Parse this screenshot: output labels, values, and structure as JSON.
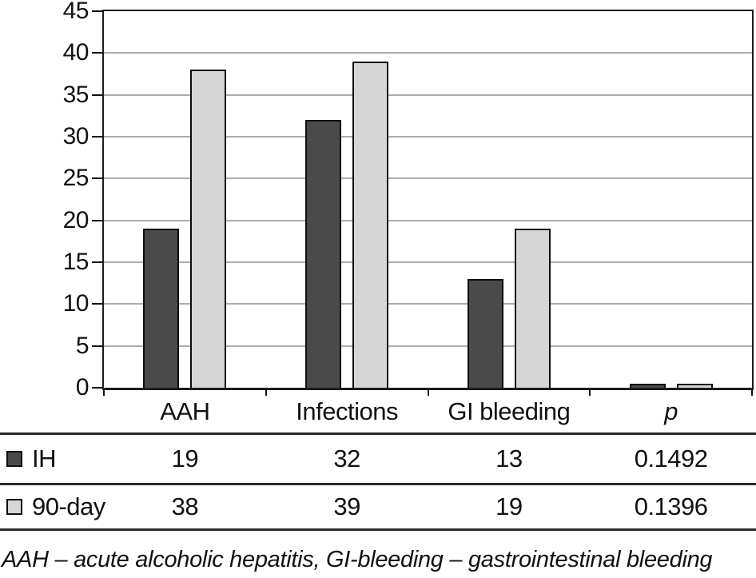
{
  "chart_data": {
    "type": "bar",
    "categories": [
      "AAH",
      "Infections",
      "GI bleeding",
      "p"
    ],
    "series": [
      {
        "name": "IH",
        "color": "#4a4a4a",
        "values": [
          19,
          32,
          13,
          0.1492
        ]
      },
      {
        "name": "90-day",
        "color": "#d6d6d6",
        "values": [
          38,
          39,
          19,
          0.1396
        ]
      }
    ],
    "title": "",
    "xlabel": "",
    "ylabel": "",
    "ylim": [
      0,
      45
    ],
    "ytick_step": 5,
    "grid": true,
    "legend_position": "table-left"
  },
  "table": {
    "header": [
      "AAH",
      "Infections",
      "GI bleeding",
      "p"
    ],
    "rows": [
      {
        "label": "IH",
        "swatch_color": "#4a4a4a",
        "values": [
          "19",
          "32",
          "13",
          "0.1492"
        ]
      },
      {
        "label": "90-day",
        "swatch_color": "#d6d6d6",
        "values": [
          "38",
          "39",
          "19",
          "0.1396"
        ]
      }
    ]
  },
  "footnote": "AAH – acute alcoholic hepatitis, GI-bleeding – gastrointestinal bleeding",
  "colors": {
    "series_dark": "#4a4a4a",
    "series_light": "#d6d6d6",
    "gridline": "#acacac",
    "axis": "#0f0f0f",
    "table_line": "#2b2b2b",
    "text": "#111111",
    "background": "#ffffff"
  }
}
